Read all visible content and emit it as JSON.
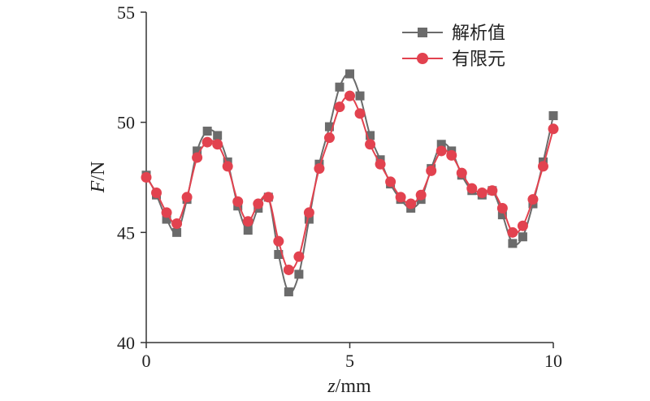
{
  "chart_data": {
    "type": "line",
    "xlabel_italic": "z",
    "xlabel_unit": "/mm",
    "ylabel_italic": "F",
    "ylabel_unit": "/N",
    "xlim": [
      0,
      10
    ],
    "ylim": [
      40,
      55
    ],
    "xticks": [
      "0",
      "5",
      "10"
    ],
    "yticks": [
      "40",
      "45",
      "50",
      "55"
    ],
    "legend_position": "top-right",
    "x": [
      0,
      0.25,
      0.5,
      0.75,
      1.0,
      1.25,
      1.5,
      1.75,
      2.0,
      2.25,
      2.5,
      2.75,
      3.0,
      3.25,
      3.5,
      3.75,
      4.0,
      4.25,
      4.5,
      4.75,
      5.0,
      5.25,
      5.5,
      5.75,
      6.0,
      6.25,
      6.5,
      6.75,
      7.0,
      7.25,
      7.5,
      7.75,
      8.0,
      8.25,
      8.5,
      8.75,
      9.0,
      9.25,
      9.5,
      9.75,
      10.0
    ],
    "series": [
      {
        "name": "解析值",
        "color": "#6b6b6b",
        "marker": "square",
        "values": [
          47.6,
          46.7,
          45.6,
          45.0,
          46.5,
          48.7,
          49.6,
          49.4,
          48.2,
          46.2,
          45.1,
          46.1,
          46.6,
          44.0,
          42.3,
          43.1,
          45.6,
          48.1,
          49.8,
          51.6,
          52.2,
          51.2,
          49.4,
          48.3,
          47.2,
          46.5,
          46.1,
          46.5,
          47.9,
          49.0,
          48.7,
          47.6,
          46.9,
          46.7,
          46.9,
          45.8,
          44.5,
          44.8,
          46.3,
          48.2,
          50.3
        ]
      },
      {
        "name": "有限元",
        "color": "#e2424f",
        "marker": "circle",
        "values": [
          47.5,
          46.8,
          45.9,
          45.4,
          46.6,
          48.4,
          49.1,
          49.0,
          48.0,
          46.4,
          45.5,
          46.3,
          46.6,
          44.6,
          43.3,
          43.9,
          45.9,
          47.9,
          49.3,
          50.7,
          51.2,
          50.4,
          49.0,
          48.1,
          47.3,
          46.6,
          46.3,
          46.7,
          47.8,
          48.7,
          48.5,
          47.7,
          47.0,
          46.8,
          46.9,
          46.1,
          45.0,
          45.3,
          46.5,
          48.0,
          49.7
        ]
      }
    ]
  }
}
